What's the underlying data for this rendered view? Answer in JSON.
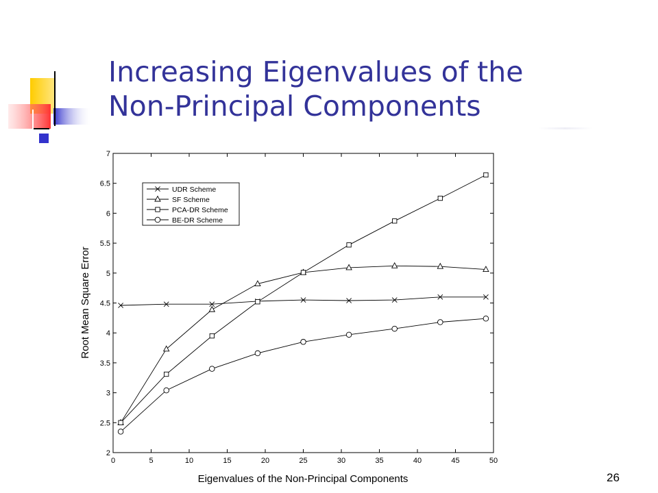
{
  "slide": {
    "title_line1": "Increasing Eigenvalues of the",
    "title_line2": "Non-Principal Components",
    "page_number": "26",
    "accent_color": "#333399"
  },
  "chart_data": {
    "type": "line",
    "xlabel": "Eigenvalues of the Non-Principal Components",
    "ylabel": "Root Mean Square Error",
    "xlim": [
      0,
      50
    ],
    "ylim": [
      2,
      7
    ],
    "xticks": [
      0,
      5,
      10,
      15,
      20,
      25,
      30,
      35,
      40,
      45,
      50
    ],
    "yticks": [
      2,
      2.5,
      3,
      3.5,
      4,
      4.5,
      5,
      5.5,
      6,
      6.5,
      7
    ],
    "legend_position": "top-left",
    "grid": false,
    "x": [
      1,
      7,
      13,
      19,
      25,
      31,
      37,
      43,
      49
    ],
    "series": [
      {
        "name": "UDR Scheme",
        "marker": "x",
        "values": [
          4.46,
          4.48,
          4.48,
          4.53,
          4.55,
          4.54,
          4.55,
          4.6,
          4.6
        ]
      },
      {
        "name": "SF Scheme",
        "marker": "triangle",
        "values": [
          2.5,
          3.73,
          4.39,
          4.82,
          5.01,
          5.09,
          5.12,
          5.11,
          5.06
        ]
      },
      {
        "name": "PCA-DR Scheme",
        "marker": "square",
        "values": [
          2.5,
          3.31,
          3.95,
          4.52,
          5.01,
          5.47,
          5.87,
          6.25,
          6.64
        ]
      },
      {
        "name": "BE-DR Scheme",
        "marker": "circle",
        "values": [
          2.35,
          3.04,
          3.4,
          3.66,
          3.85,
          3.97,
          4.07,
          4.18,
          4.24
        ]
      }
    ]
  }
}
